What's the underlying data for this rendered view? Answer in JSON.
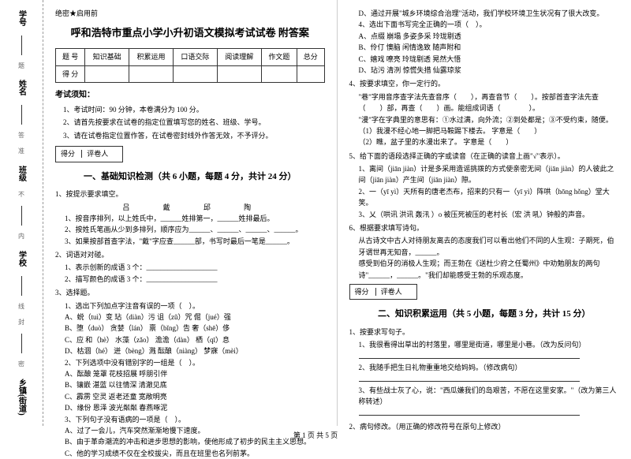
{
  "margin": {
    "labels": [
      "学号",
      "姓名",
      "班级",
      "学校",
      "乡镇(街道)"
    ],
    "dotted_chars": [
      "题",
      "答",
      "准",
      "不",
      "内",
      "线",
      "封",
      "密"
    ]
  },
  "header_mark": "绝密★启用前",
  "title": "呼和浩特市重点小学小升初语文模拟考试试卷 附答案",
  "score_table": {
    "row1": [
      "题 号",
      "知识基础",
      "积累运用",
      "口语交际",
      "阅读理解",
      "作文题",
      "总分"
    ],
    "row2": [
      "得 分",
      "",
      "",
      "",
      "",
      "",
      ""
    ]
  },
  "notice_head": "考试须知：",
  "rules": [
    "1、考试时间：90 分钟，本卷满分为 100 分。",
    "2、请首先按要求在试卷的指定位置填写您的姓名、班级、学号。",
    "3、请在试卷指定位置作答，在试卷密封线外作答无效，不予评分。"
  ],
  "score_box": {
    "a": "得分",
    "b": "评卷人"
  },
  "part1_title": "一、基础知识检测（共 6 小题，每题 4 分，共计 24 分）",
  "q1": {
    "stem": "1、按提示要求填空。",
    "line": "吕    戴    邱    陶",
    "s1": "1、按音序排列，以上姓氏中，______姓排第一，______姓排最后。",
    "s2": "2、按姓氏笔画从少到多排列，顺序应为______、______、______、______。",
    "s3": "3、如果按部首查字法，\"戴\"字应查______部，书写时最后一笔是______。"
  },
  "q2": {
    "stem": "2、词语对对碰。",
    "s1": "1、表示创新的成语 3 个：____________________",
    "s2": "2、描写颜色的成语 3 个：____________________"
  },
  "q3": {
    "stem": "3、选择题。",
    "s1": "1、选出下列加点字注音有误的一项（　）。",
    "opts1": [
      "A、蜕（tuì）变    玷（diàn）污    诅（zǔ）咒    倔（jué）强",
      "B、堕（duò）    贪婪（lán）    禀（bǐng）告    奢（shē）侈",
      "C、应 和（hè）    水藻（zǎo）    澹澹（dàn）    栖（qī）息",
      "D、枯涸（hé）    迸（bèng）溅    酝酿（niàng）    梦寐（mèi）"
    ],
    "s2": "2、下列选项中没有错别字的一组是（　）。",
    "opts2": [
      "A、酝酿    笼罩    花枝招展    呼朋引伴",
      "B、镶嵌    湛蓝    以往情深    清澈见底",
      "C、霹雳    空灵    返老还童    宽敞明亮",
      "D、缘份    恩泽    波光粼粼    春燕啄泥"
    ],
    "s3": "3、下列句子没有语病的一项是（　）。",
    "opts3": [
      "A、过了一会儿，汽车突然渐渐地慢下速度。",
      "B、由于革命潮流的冲击和进步思想的影响，使他形成了初步的民主主义思想。",
      "C、他的学习成绩不仅在全校拔尖，而且在班里也名列前茅。"
    ]
  },
  "right": {
    "optD": "D、通过开展\"城乡环境综合治理\"活动，我们学校环境卫生状况有了很大改变。",
    "s4": "4、选出下面书写完全正确的一项（　）。",
    "opts4": [
      "A、点缀    崩塌    多姿多采    玲珑剔透",
      "B、伶仃    懊脑    闲情逸致    随声附和",
      "C、嬉戏    嘹亮    玲珑剔透    晃然大悟",
      "D、玷污    清洌    惊慌失措    仙露琼浆"
    ],
    "q4": {
      "stem": "4、按要求填空，你一定行的。",
      "s1": "\"巷\"字用音序查字法先查音序（　　），再查音节（　　）。按部首查字法先查（　　）部，再查（　　）画。能组成词语（　　　　）。",
      "s2": "\"漫\"字在字典里的意思有：①水过满，向外流；②到处都是；③不受约束，随便。",
      "s3": "（1）我漫不经心地一脚把马鞍踢下楼去。    字意是（　　）",
      "s4": "（2）瞧，盆子里的水漫出来了。    字意是（　　）"
    },
    "q5": {
      "stem": "5、给下面的语段选择正确的字或读音（在正确的读音上画\"√\"表示）。",
      "s1": "1、离间（jiān  jiàn）计是多采用造谣挑拨的方式使亲密无间（jiān  jiàn）的人彼此之间（jiān  jiàn）产生间（jiān  jiàn）隙。",
      "s2": "2、一（yī  yì）天所有的唐老杰布，招来的只有一（yī  yì）阵哄（hōng hǒng）堂大笑。",
      "s3": "3、乂（哄讯  洪讯  轰汛  ）o 被压死被压的老村长（宏  洪  吼）钟般的声音。"
    },
    "q6": {
      "stem": "6、根据要求填写诗句。",
      "s1": "从古诗文中古人对待朋友离去的态度我们可以看出他们不同的人生观：子期死，伯牙谓世再无知音，______。",
      "s2": "感受到伯牙的消极人生观；而王勃在《送杜少府之任蜀州》中劝勉朋友的两句诗\"______，______。\"我们却能感受王勃的乐观态度。"
    },
    "part2_title": "二、知识积累运用（共 5 小题，每题 3 分，共计 15 分）",
    "q21": {
      "stem": "1、按要求写句子。",
      "s1": "1、我很看得出草出的村落里，哪里是街道，哪里是小巷。（改为反问句）",
      "s2": "2、我随手把生日礼物重重地交给妈妈。（修改病句）",
      "s3": "3、有些战士灰了心，说：\"西瓜嫌我们的岛艰苦，不愿在这里安家。\"（改为第三人称转述）"
    },
    "q22": {
      "stem": "2、病句修改。（用正确的修改符号在原句上修改）"
    }
  },
  "footer": "第 1 页 共 5 页"
}
